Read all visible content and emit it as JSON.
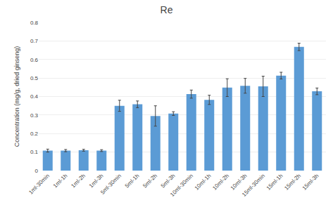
{
  "chart_data": {
    "type": "bar",
    "title": "Re",
    "ylabel": "Concentration (mg/g, dried ginseng)",
    "categories": [
      "1ml-30min",
      "1ml-1h",
      "1ml-2h",
      "1ml-3h",
      "5ml-30min",
      "5ml-1h",
      "5ml-2h",
      "5ml-3h",
      "10ml-30min",
      "10ml-1h",
      "10ml-2h",
      "10ml-3h",
      "15ml-30min",
      "15ml-1h",
      "15ml-2h",
      "15ml-3h"
    ],
    "values": [
      0.108,
      0.108,
      0.11,
      0.108,
      0.35,
      0.358,
      0.295,
      0.308,
      0.413,
      0.382,
      0.448,
      0.458,
      0.455,
      0.513,
      0.668,
      0.428
    ],
    "errors": [
      0.008,
      0.006,
      0.005,
      0.005,
      0.03,
      0.018,
      0.055,
      0.01,
      0.022,
      0.025,
      0.048,
      0.04,
      0.055,
      0.018,
      0.02,
      0.018
    ],
    "color": "#5B9BD5",
    "ylim": [
      0,
      0.8
    ],
    "yticks": [
      0,
      0.1,
      0.2,
      0.3,
      0.4,
      0.5,
      0.6,
      0.7,
      0.8
    ],
    "grid": true
  }
}
